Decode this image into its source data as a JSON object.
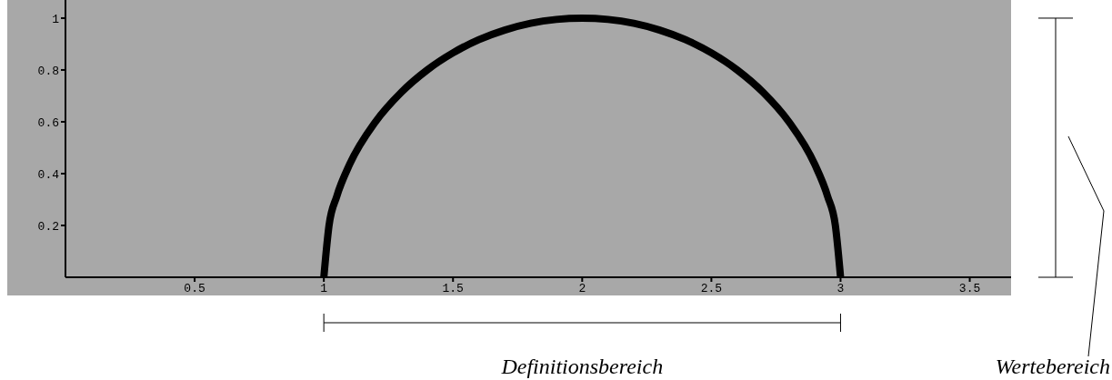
{
  "chart_data": {
    "type": "line",
    "x": [
      1,
      1.02,
      1.05,
      1.1,
      1.2,
      1.3,
      1.4,
      1.5,
      1.6,
      1.7,
      1.8,
      1.9,
      2,
      2.1,
      2.2,
      2.3,
      2.4,
      2.5,
      2.6,
      2.7,
      2.8,
      2.9,
      2.95,
      2.98,
      3
    ],
    "series": [
      {
        "color": "#000000",
        "values": [
          0,
          0.199,
          0.312,
          0.436,
          0.6,
          0.714,
          0.8,
          0.866,
          0.917,
          0.954,
          0.98,
          0.995,
          1,
          0.995,
          0.98,
          0.954,
          0.917,
          0.866,
          0.8,
          0.714,
          0.6,
          0.436,
          0.312,
          0.199,
          0
        ]
      }
    ],
    "xlim": [
      0,
      3.66
    ],
    "ylim": [
      0,
      1.07
    ],
    "xticks": [
      0.5,
      1,
      1.5,
      2,
      2.5,
      3,
      3.5
    ],
    "yticks": [
      0.2,
      0.4,
      0.6,
      0.8,
      1
    ],
    "marker": "none",
    "line_style": "solid",
    "annotations": [
      "Definitionsbereich",
      "Wertebereich"
    ]
  }
}
